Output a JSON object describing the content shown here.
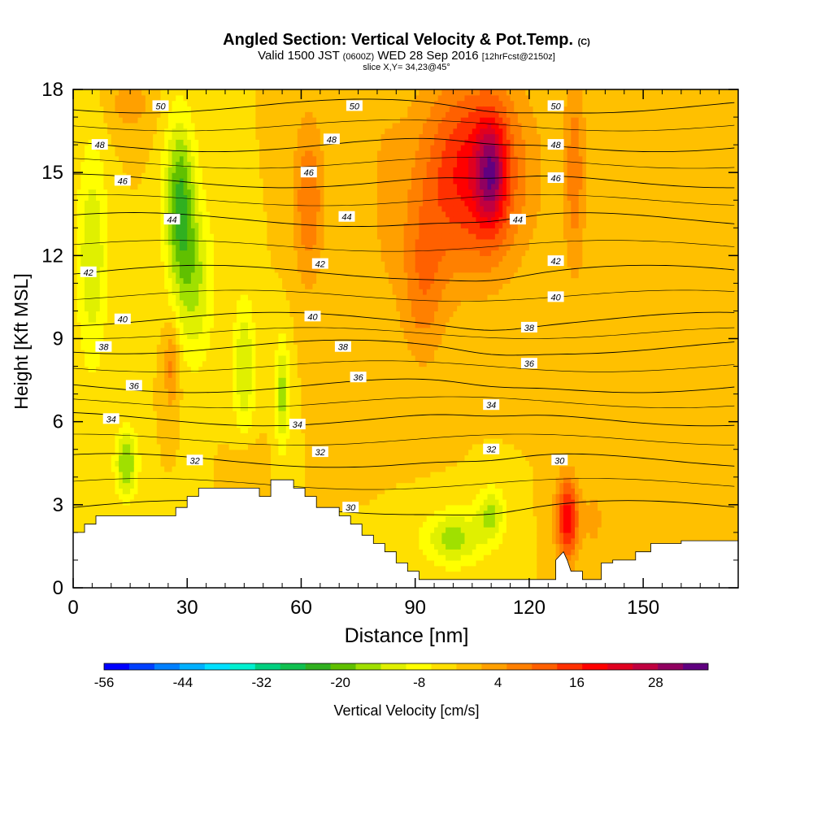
{
  "chart_data": {
    "type": "heatmap",
    "title": "Angled Section: Vertical Velocity & Pot.Temp.",
    "title_unit": "(C)",
    "subtitle_main": "Valid 1500 JST",
    "subtitle_utc": "(0600Z)",
    "subtitle_date": "WED 28 Sep 2016",
    "subtitle_fcst": "[12hrFcst@2150z]",
    "slice_label": "slice X,Y= 34,23@45°",
    "xlabel": "Distance [nm]",
    "ylabel": "Height [Kft MSL]",
    "xlim": [
      0,
      175
    ],
    "ylim": [
      0,
      18
    ],
    "x_ticks": [
      "0",
      "30",
      "60",
      "90",
      "120",
      "150"
    ],
    "x_tick_values": [
      0,
      30,
      60,
      90,
      120,
      150
    ],
    "y_ticks": [
      "0",
      "3",
      "6",
      "9",
      "12",
      "15",
      "18"
    ],
    "y_tick_values": [
      0,
      3,
      6,
      9,
      12,
      15,
      18
    ],
    "colorbar": {
      "label": "Vertical Velocity [cm/s]",
      "tick_labels": [
        "-56",
        "-44",
        "-32",
        "-20",
        "-8",
        "4",
        "16",
        "28"
      ],
      "tick_values": [
        -56,
        -44,
        -32,
        -20,
        -8,
        4,
        16,
        28
      ],
      "min": -56,
      "max": 36,
      "step": 4,
      "colors": [
        "#0000ff",
        "#0040ff",
        "#0080ff",
        "#00b0ff",
        "#00e0ff",
        "#00f0d0",
        "#00d080",
        "#10c050",
        "#30b020",
        "#60c000",
        "#a0e000",
        "#e0f000",
        "#ffff00",
        "#ffe000",
        "#ffc000",
        "#ffa000",
        "#ff8000",
        "#ff6000",
        "#ff3000",
        "#ff0000",
        "#e00020",
        "#c00040",
        "#900060",
        "#600080"
      ]
    },
    "theta_contours": [
      {
        "value": 30,
        "y": 2.9,
        "label_x": 73
      },
      {
        "value": 32,
        "y": 4.6,
        "label_x": 32
      },
      {
        "value": 34,
        "y": 6.1,
        "label_x": 10
      },
      {
        "value": 36,
        "y": 7.3,
        "label_x": 16
      },
      {
        "value": 38,
        "y": 8.7,
        "label_x": 8
      },
      {
        "value": 40,
        "y": 9.7,
        "label_x": 13
      },
      {
        "value": 42,
        "y": 11.4,
        "label_x": 4
      },
      {
        "value": 44,
        "y": 13.3,
        "label_x": 26
      },
      {
        "value": 46,
        "y": 14.7,
        "label_x": 13
      },
      {
        "value": 48,
        "y": 16.0,
        "label_x": 7
      },
      {
        "value": 50,
        "y": 17.4,
        "label_x": 23
      }
    ],
    "theta_extra_labels": [
      {
        "value": "50",
        "x": 74,
        "y": 17.4
      },
      {
        "value": "50",
        "x": 127,
        "y": 17.4
      },
      {
        "value": "48",
        "x": 68,
        "y": 16.2
      },
      {
        "value": "48",
        "x": 127,
        "y": 16.0
      },
      {
        "value": "46",
        "x": 62,
        "y": 15.0
      },
      {
        "value": "46",
        "x": 127,
        "y": 14.8
      },
      {
        "value": "44",
        "x": 72,
        "y": 13.4
      },
      {
        "value": "44",
        "x": 117,
        "y": 13.3
      },
      {
        "value": "42",
        "x": 65,
        "y": 11.7
      },
      {
        "value": "42",
        "x": 127,
        "y": 11.8
      },
      {
        "value": "40",
        "x": 63,
        "y": 9.8
      },
      {
        "value": "40",
        "x": 127,
        "y": 10.5
      },
      {
        "value": "38",
        "x": 71,
        "y": 8.7
      },
      {
        "value": "38",
        "x": 120,
        "y": 9.4
      },
      {
        "value": "36",
        "x": 75,
        "y": 7.6
      },
      {
        "value": "36",
        "x": 120,
        "y": 8.1
      },
      {
        "value": "34",
        "x": 59,
        "y": 5.9
      },
      {
        "value": "34",
        "x": 110,
        "y": 6.6
      },
      {
        "value": "32",
        "x": 65,
        "y": 4.9
      },
      {
        "value": "32",
        "x": 110,
        "y": 5.0
      },
      {
        "value": "30",
        "x": 128,
        "y": 4.6
      }
    ]
  }
}
